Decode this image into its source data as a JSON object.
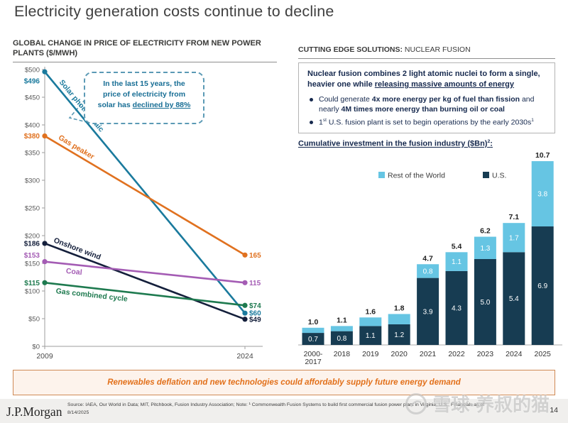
{
  "title": "Electricity generation costs continue to decline",
  "right_panel": {
    "header_bold": "CUTTING EDGE SOLUTIONS:",
    "header_rest": " NUCLEAR FUSION",
    "box": {
      "intro_pre": "Nuclear fusion combines 2 light atomic nuclei to form a single, heavier one while ",
      "intro_u": "releasing massive amounts of energy",
      "b1_pre": "Could generate ",
      "b1_bold1": "4x more energy per kg of fuel than fission",
      "b1_mid": " and nearly ",
      "b1_bold2": "4M times more energy than burning oil or coal",
      "b2_num": "1",
      "b2_sup": "st",
      "b2_text": " U.S. fusion plant is set to begin operations by the early 2030s",
      "b2_note": "1"
    },
    "bar_title_text": "Cumulative investment in the fusion industry ($Bn)",
    "bar_title_sup": "2",
    "bar_title_suffix": ":"
  },
  "chart_data": [
    {
      "type": "line",
      "title": "GLOBAL CHANGE IN PRICE OF ELECTRICITY FROM NEW POWER PLANTS ($/MWH)",
      "x": [
        "2009",
        "2024"
      ],
      "ylim": [
        0,
        500
      ],
      "ytick_step": 50,
      "ytick_prefix": "$",
      "grid": false,
      "series": [
        {
          "name": "Solar photovoltaic",
          "values": [
            496,
            60
          ],
          "color": "#1a7a9d",
          "start_label": "$496",
          "end_label": "$60"
        },
        {
          "name": "Gas peaker",
          "values": [
            380,
            165
          ],
          "color": "#e0711f",
          "start_label": "$380",
          "end_label": "165"
        },
        {
          "name": "Onshore wind",
          "values": [
            186,
            49
          ],
          "color": "#141f3b",
          "start_label": "$186",
          "end_label": "$49"
        },
        {
          "name": "Coal",
          "values": [
            153,
            115
          ],
          "color": "#a45cb4",
          "start_label": "$153",
          "end_label": "115"
        },
        {
          "name": "Gas combined cycle",
          "values": [
            115,
            74
          ],
          "color": "#1e7a4f",
          "start_label": "$115",
          "end_label": "$74"
        }
      ],
      "annotation": {
        "line1": "In the last 15 years, the",
        "line2": "price of electricity from",
        "line3_pre": "solar has ",
        "line3_u": "declined by 88%"
      }
    },
    {
      "type": "bar",
      "stacked": true,
      "title": "Cumulative investment in the fusion industry ($Bn)²:",
      "categories": [
        "2000-\n2017",
        "2018",
        "2019",
        "2020",
        "2021",
        "2022",
        "2023",
        "2024",
        "2025"
      ],
      "series": [
        {
          "name": "U.S.",
          "color": "#173c52",
          "values": [
            0.7,
            0.8,
            1.1,
            1.2,
            3.9,
            4.3,
            5.0,
            5.4,
            6.9
          ],
          "labels": [
            "0.7",
            "0.8",
            "1.1",
            "1.2",
            "3.9",
            "4.3",
            "5.0",
            "5.4",
            "6.9"
          ]
        },
        {
          "name": "Rest of the World",
          "color": "#66c5e3",
          "values": [
            0.3,
            0.3,
            0.5,
            0.6,
            0.8,
            1.1,
            1.3,
            1.7,
            3.8
          ],
          "labels": [
            "",
            "",
            "",
            "",
            "0.8",
            "1.1",
            "1.3",
            "1.7",
            "3.8"
          ]
        }
      ],
      "totals": [
        "1.0",
        "1.1",
        "1.6",
        "1.8",
        "4.7",
        "5.4",
        "6.2",
        "7.1",
        "10.7"
      ],
      "legend": [
        {
          "label": "Rest of the World",
          "color": "#66c5e3"
        },
        {
          "label": "U.S.",
          "color": "#173c52"
        }
      ]
    }
  ],
  "banner": {
    "text": "Renewables deflation and new technologies could affordably supply future energy demand"
  },
  "footer": {
    "logo": "J.P.Morgan",
    "source_line1": "Source: IAEA, Our World in Data; MIT, Pitchbook, Fusion Industry Association; Note: ¹ Commonwealth Fusion Systems to build first commercial fusion power plant in Virginia, U.S.; Financials as of",
    "source_line2": "8/14/2025",
    "page": "14",
    "watermark": "雪球·养叔的猫"
  },
  "colors": {
    "banner_orange": "#e2701a",
    "bar_us_dark": "#173c52",
    "bar_row_light": "#66c5e3",
    "navy_text": "#16294e"
  }
}
